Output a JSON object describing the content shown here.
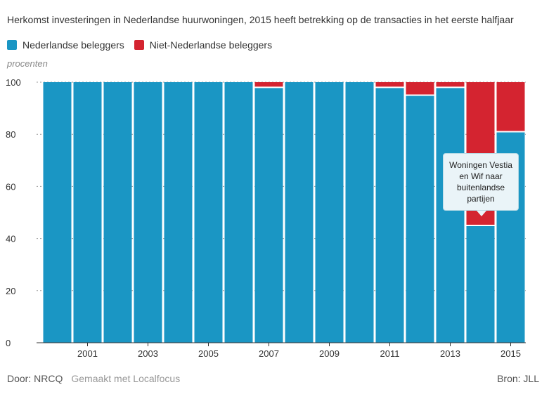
{
  "title": "Herkomst investeringen in Nederlandse huurwoningen, 2015 heeft betrekking op de transacties in het eerste halfjaar",
  "legend": [
    {
      "label": "Nederlandse beleggers",
      "color": "#1a96c4"
    },
    {
      "label": "Niet-Nederlandse beleggers",
      "color": "#d42430"
    }
  ],
  "unit_label": "procenten",
  "footer": {
    "by": "Door: NRCQ",
    "made_with": "Gemaakt met Localfocus",
    "source": "Bron: JLL"
  },
  "annotation": {
    "text": "Woningen Vestia en Wif naar buitenlandse partijen",
    "year": "2014"
  },
  "chart_data": {
    "type": "bar",
    "stacked": true,
    "categories": [
      "2000",
      "2001",
      "2002",
      "2003",
      "2004",
      "2005",
      "2006",
      "2007",
      "2008",
      "2009",
      "2010",
      "2011",
      "2012",
      "2013",
      "2014",
      "2015"
    ],
    "tick_labels": [
      "2001",
      "2003",
      "2005",
      "2007",
      "2009",
      "2011",
      "2013",
      "2015"
    ],
    "series": [
      {
        "name": "Nederlandse beleggers",
        "color": "#1a96c4",
        "values": [
          100,
          100,
          100,
          100,
          100,
          100,
          100,
          98,
          100,
          100,
          100,
          98,
          95,
          98,
          45,
          81
        ]
      },
      {
        "name": "Niet-Nederlandse beleggers",
        "color": "#d42430",
        "values": [
          0,
          0,
          0,
          0,
          0,
          0,
          0,
          2,
          0,
          0,
          0,
          2,
          5,
          2,
          55,
          19
        ]
      }
    ],
    "ylabel": "procenten",
    "ylim": [
      0,
      100
    ],
    "yticks": [
      0,
      20,
      40,
      60,
      80,
      100
    ],
    "grid": true,
    "legend_position": "top-left"
  }
}
